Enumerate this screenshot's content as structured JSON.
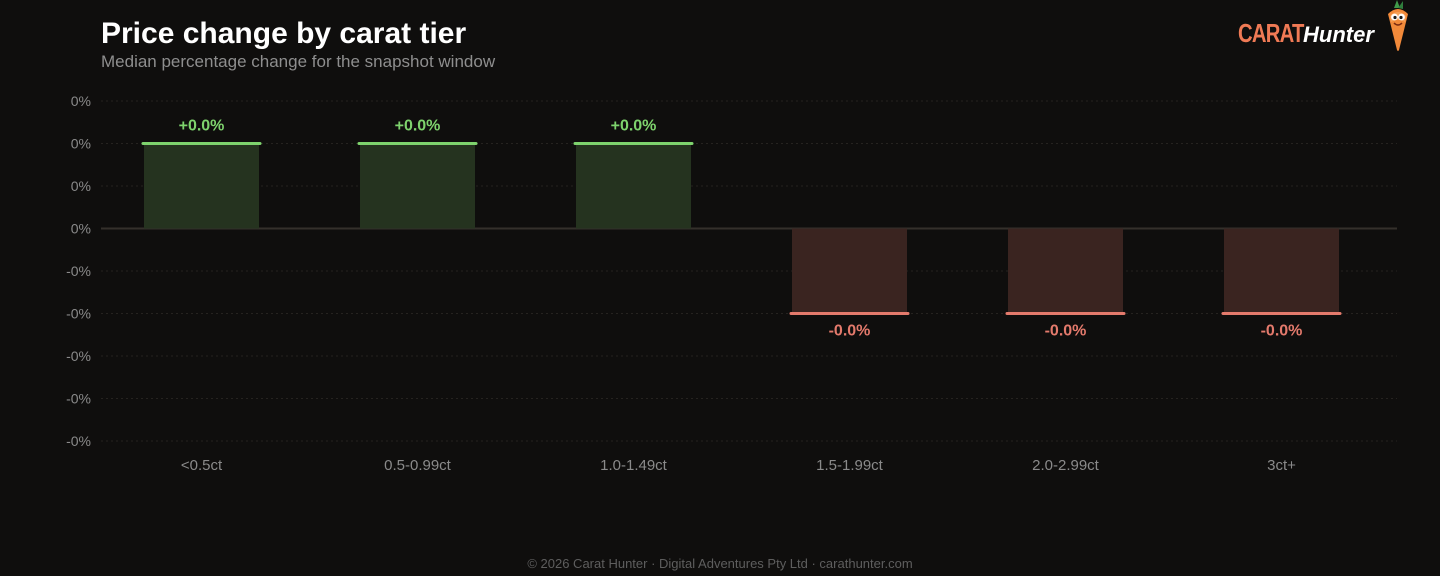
{
  "header": {
    "title": "Price change by carat tier",
    "subtitle": "Median percentage change for the snapshot window"
  },
  "brand": {
    "name_part1": "CARAT",
    "name_part2": "Hunter",
    "logo_icon": "carrot-mascot-icon"
  },
  "footer": {
    "text": "© 2026 Carat Hunter · Digital Adventures Pty Ltd · carathunter.com"
  },
  "colors": {
    "background": "#0f0e0d",
    "positive": "#7ed36d",
    "positive_fill": "#25331f",
    "negative": "#e47a6c",
    "negative_fill": "#3a2420",
    "grid": "#262320",
    "zero_line": "#34302b",
    "tick_text": "#8a8a8a",
    "brand_orange": "#f07a55"
  },
  "chart_data": {
    "type": "bar",
    "title": "Price change by carat tier",
    "subtitle": "Median percentage change for the snapshot window",
    "categories": [
      "<0.5ct",
      "0.5-0.99ct",
      "1.0-1.49ct",
      "1.5-1.99ct",
      "2.0-2.99ct",
      "3ct+"
    ],
    "values": [
      0.0,
      0.0,
      0.0,
      -0.0,
      -0.0,
      -0.0
    ],
    "bar_height_fraction": [
      1,
      1,
      1,
      -1,
      -1,
      -1
    ],
    "data_labels": [
      "+0.0%",
      "+0.0%",
      "+0.0%",
      "-0.0%",
      "-0.0%",
      "-0.0%"
    ],
    "y_ticks": [
      "0%",
      "0%",
      "0%",
      "0%",
      "-0%",
      "-0%",
      "-0%",
      "-0%",
      "-0%"
    ],
    "ylim": [
      -4,
      3
    ],
    "grid": true,
    "legend": "none"
  }
}
